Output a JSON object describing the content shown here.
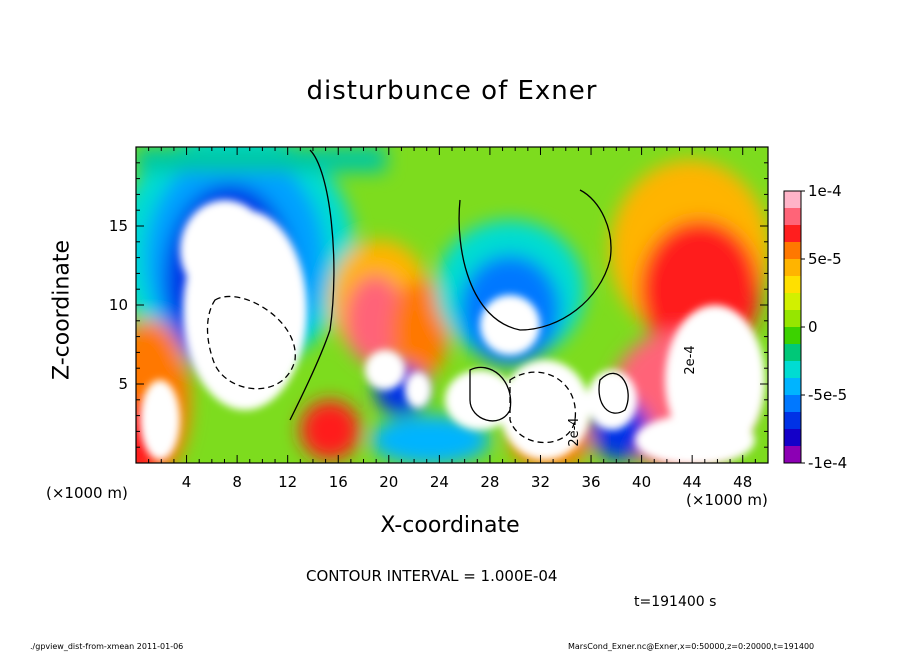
{
  "chart_data": {
    "type": "heatmap",
    "title": "disturbunce of Exner",
    "xlabel": "X-coordinate",
    "ylabel": "Z-coordinate",
    "x_unit": "(×1000 m)",
    "x_unit_right": "(×1000 m)",
    "xlim": [
      0,
      50
    ],
    "ylim": [
      0,
      20
    ],
    "x_ticks": [
      4,
      8,
      12,
      16,
      20,
      24,
      28,
      32,
      36,
      40,
      44,
      48
    ],
    "x_tick_labels": [
      "4",
      "8",
      "12",
      "16",
      "20",
      "24",
      "28",
      "32",
      "36",
      "40",
      "44",
      "48"
    ],
    "y_ticks": [
      5,
      10,
      15
    ],
    "y_tick_labels": [
      "5",
      "10",
      "15"
    ],
    "colorbar": {
      "range": [
        -0.0001,
        0.0001
      ],
      "tick_values": [
        0.0001,
        5e-05,
        0,
        -5e-05,
        -0.0001
      ],
      "tick_labels": [
        "1e-4",
        "5e-5",
        "0",
        "-5e-5",
        "-1e-4"
      ],
      "colors": [
        "#ffb4c8",
        "#ff6478",
        "#ff1e1e",
        "#ff7800",
        "#ffb400",
        "#ffe000",
        "#d2f000",
        "#96e600",
        "#3cd200",
        "#00c878",
        "#00dcd2",
        "#00b4ff",
        "#0078ff",
        "#0032e6",
        "#1400c8",
        "#8c00b4"
      ]
    },
    "contour_labels": [
      "2e-4",
      "2e-4"
    ],
    "contour_interval": "CONTOUR INTERVAL = 1.000E-04",
    "time_label": "t=191400 s"
  },
  "footer": {
    "left": "./gpview_dist-from-xmean   2011-01-06",
    "right": "MarsCond_Exner.nc@Exner,x=0:50000,z=0:20000,t=191400"
  }
}
